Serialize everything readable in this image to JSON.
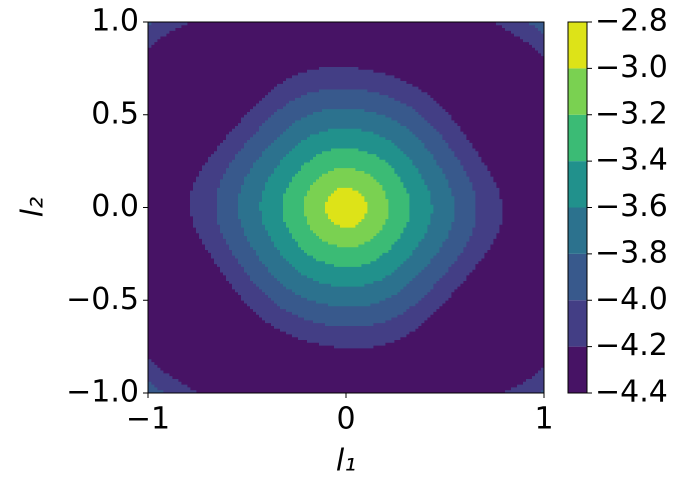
{
  "chart_data": {
    "type": "contour",
    "xlabel": "l₁",
    "ylabel": "l₂",
    "xlim": [
      -1,
      1
    ],
    "ylim": [
      -1,
      1
    ],
    "xticks": [
      {
        "value": -1,
        "label": "−1"
      },
      0,
      1
    ],
    "yticks": [
      {
        "value": -1,
        "label": "−1.0"
      },
      {
        "value": -0.5,
        "label": "−0.5"
      },
      {
        "value": 0,
        "label": "0.0"
      },
      {
        "value": 0.5,
        "label": "0.5"
      },
      {
        "value": 1,
        "label": "1.0"
      }
    ],
    "levels": [
      {
        "value": -4.4,
        "label": "−4.4"
      },
      {
        "value": -4.2,
        "label": "−4.2"
      },
      {
        "value": -4.0,
        "label": "−4.0"
      },
      {
        "value": -3.8,
        "label": "−3.8"
      },
      {
        "value": -3.6,
        "label": "−3.6"
      },
      {
        "value": -3.4,
        "label": "−3.4"
      },
      {
        "value": -3.2,
        "label": "−3.2"
      },
      {
        "value": -3.0,
        "label": "−3.0"
      },
      {
        "value": -2.8,
        "label": "−2.8"
      }
    ],
    "colors": [
      "#471365",
      "#433e85",
      "#38598c",
      "#2c728e",
      "#21918c",
      "#3bbb75",
      "#7ad151",
      "#dde318"
    ]
  }
}
